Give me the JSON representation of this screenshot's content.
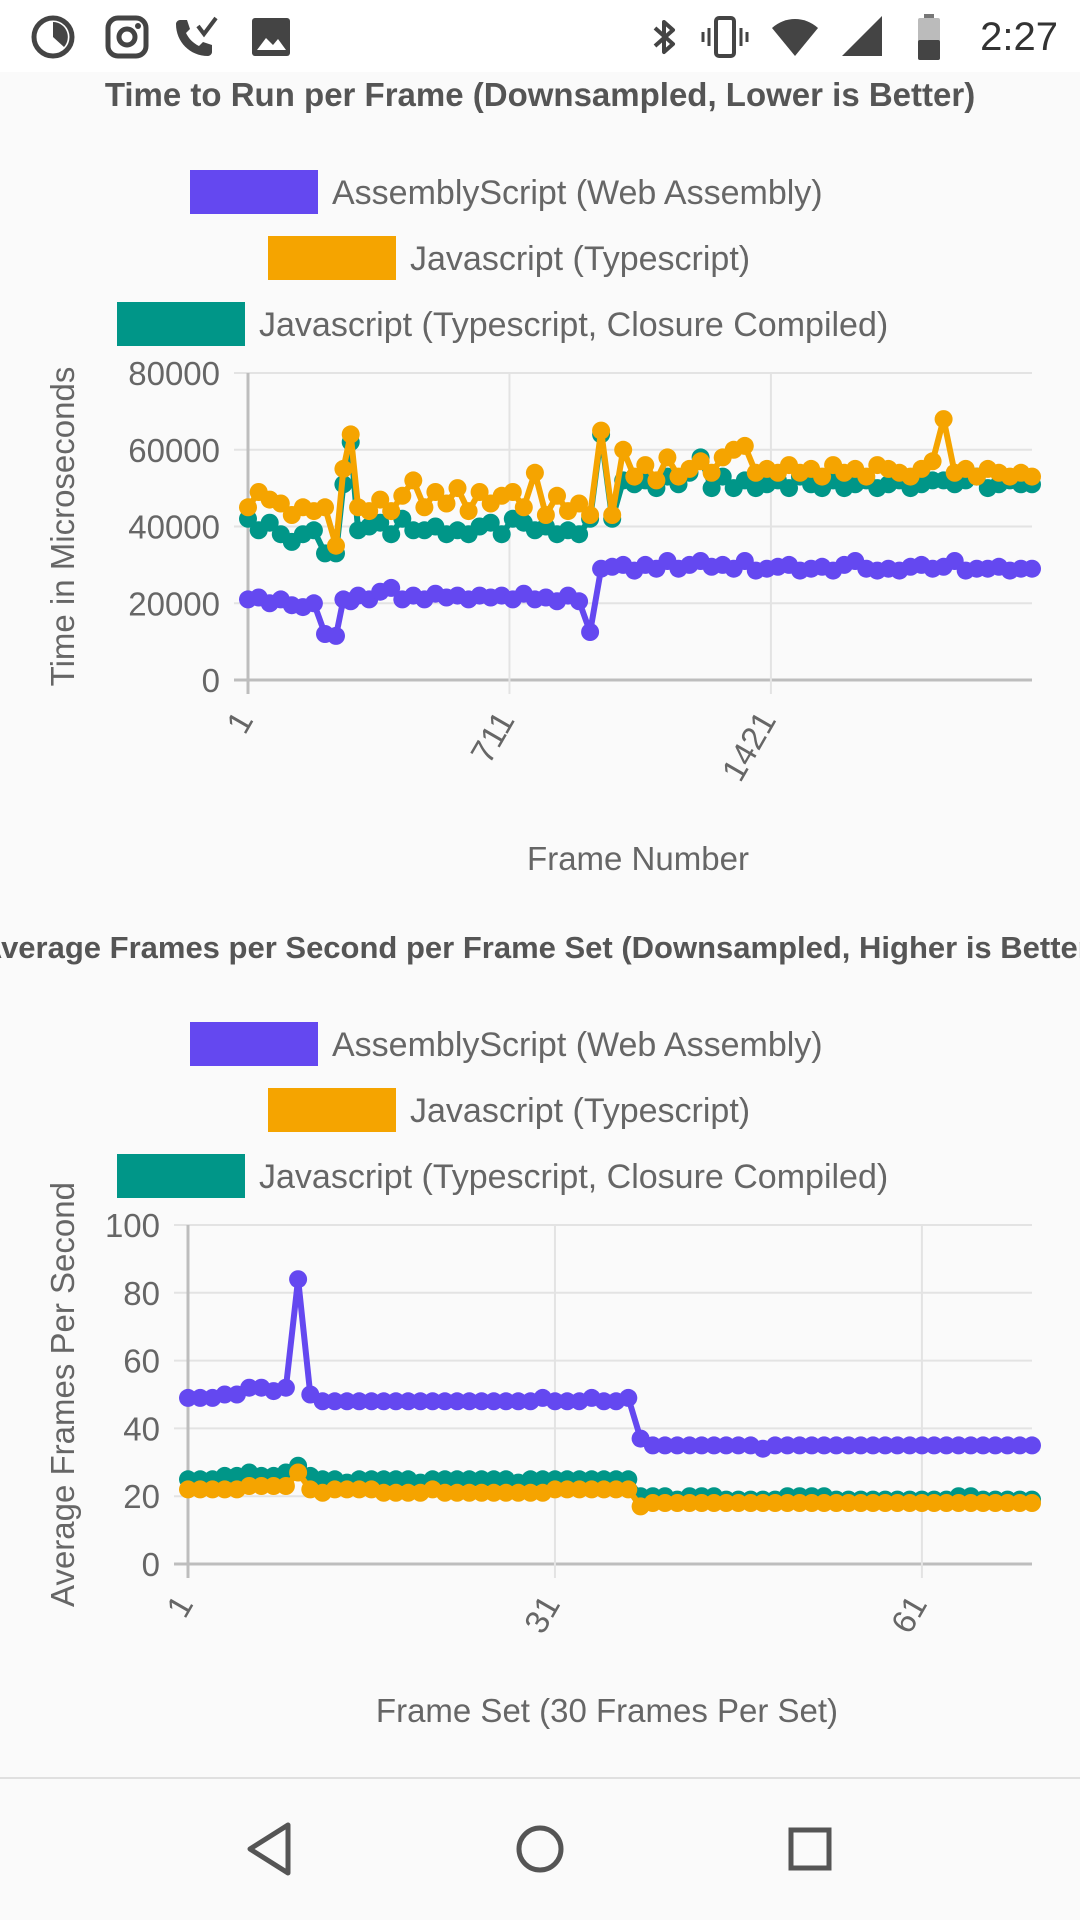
{
  "status_bar": {
    "time": "2:27",
    "left_icons": [
      "timer-icon",
      "instagram-icon",
      "wifi-calling-icon",
      "gallery-icon"
    ],
    "right_icons": [
      "bluetooth-icon",
      "vibrate-icon",
      "wifi-icon",
      "cell-signal-icon",
      "battery-icon"
    ]
  },
  "nav_bar": {
    "icons": [
      "back-icon",
      "home-icon",
      "recents-icon"
    ]
  },
  "colors": {
    "assemblyscript": "#6448f0",
    "typescript": "#f5a400",
    "closure": "#009688",
    "grid": "#e3e3e3",
    "axis": "#bdbdbd",
    "text": "#666666"
  },
  "chart_data": [
    {
      "type": "line",
      "title": "Time to Run per Frame (Downsampled, Lower is Better)",
      "xlabel": "Frame Number",
      "ylabel": "Time in Microseconds",
      "ylim": [
        0,
        80000
      ],
      "yticks": [
        "0",
        "20000",
        "40000",
        "60000",
        "80000"
      ],
      "xticks": [
        {
          "label": "1",
          "value": 1
        },
        {
          "label": "711",
          "value": 711
        },
        {
          "label": "1421",
          "value": 1421
        }
      ],
      "xlim": [
        1,
        2130
      ],
      "grid": true,
      "legend_position": "top",
      "x": [
        1,
        30,
        60,
        90,
        120,
        150,
        180,
        210,
        240,
        260,
        280,
        300,
        330,
        360,
        390,
        420,
        450,
        480,
        510,
        540,
        570,
        600,
        630,
        660,
        690,
        720,
        750,
        780,
        810,
        840,
        870,
        900,
        930,
        960,
        990,
        1020,
        1050,
        1080,
        1110,
        1140,
        1170,
        1200,
        1230,
        1260,
        1290,
        1320,
        1350,
        1380,
        1410,
        1440,
        1470,
        1500,
        1530,
        1560,
        1590,
        1620,
        1650,
        1680,
        1710,
        1740,
        1770,
        1800,
        1830,
        1860,
        1890,
        1920,
        1950,
        1980,
        2010,
        2040,
        2070,
        2100,
        2130
      ],
      "series": [
        {
          "name": "AssemblyScript (Web Assembly)",
          "color": "#6448f0",
          "values": [
            21000,
            21500,
            20000,
            21000,
            19500,
            19000,
            20000,
            12000,
            11500,
            21000,
            20500,
            22000,
            21000,
            23000,
            24000,
            21000,
            22000,
            21000,
            22500,
            21500,
            22000,
            21000,
            22000,
            21500,
            22000,
            21000,
            22500,
            21000,
            21500,
            20500,
            22000,
            20500,
            12500,
            29000,
            29500,
            30000,
            28500,
            30000,
            29000,
            31000,
            29000,
            30000,
            31000,
            29500,
            30000,
            29000,
            31000,
            28500,
            29000,
            29500,
            30000,
            28500,
            29000,
            29500,
            28500,
            30000,
            31000,
            29000,
            28500,
            29000,
            28500,
            29500,
            30000,
            29000,
            29500,
            31000,
            28500,
            29000,
            29000,
            29500,
            28500,
            29000,
            29000
          ]
        },
        {
          "name": "Javascript (Typescript)",
          "color": "#f5a400",
          "values": [
            45000,
            49000,
            47000,
            46000,
            43000,
            45000,
            44000,
            45000,
            35000,
            55000,
            64000,
            45000,
            44000,
            47000,
            44000,
            48000,
            52000,
            45000,
            49000,
            46000,
            50000,
            44000,
            49000,
            46000,
            48000,
            49000,
            45000,
            54000,
            43000,
            48000,
            44000,
            46000,
            43000,
            65000,
            43000,
            60000,
            53000,
            56000,
            52000,
            58000,
            53000,
            55000,
            57000,
            54000,
            58000,
            60000,
            61000,
            54000,
            55000,
            54000,
            56000,
            54000,
            55000,
            53000,
            56000,
            54000,
            55000,
            53000,
            56000,
            55000,
            54000,
            53000,
            55000,
            57000,
            68000,
            54000,
            55000,
            53000,
            55000,
            54000,
            53000,
            54000,
            53000
          ]
        },
        {
          "name": "Javascript (Typescript, Closure Compiled)",
          "color": "#009688",
          "values": [
            42000,
            39000,
            41000,
            38000,
            36000,
            38000,
            39000,
            33000,
            33000,
            51000,
            62000,
            39000,
            40000,
            41000,
            38000,
            42000,
            39000,
            39000,
            40000,
            38000,
            39000,
            38000,
            40000,
            41000,
            38000,
            42000,
            41000,
            39000,
            40000,
            38000,
            39000,
            38000,
            42000,
            64000,
            42000,
            52000,
            51000,
            52000,
            50000,
            53000,
            51000,
            54000,
            58000,
            50000,
            53000,
            50000,
            52000,
            50000,
            51000,
            52000,
            50000,
            53000,
            51000,
            50000,
            52000,
            50000,
            51000,
            52000,
            50000,
            51000,
            52000,
            50000,
            51000,
            52000,
            52000,
            51000,
            52000,
            53000,
            50000,
            51000,
            52000,
            51000,
            51000
          ]
        }
      ]
    },
    {
      "type": "line",
      "title": "Average Frames per Second per Frame Set (Downsampled, Higher is Better)",
      "xlabel": "Frame Set (30 Frames Per Set)",
      "ylabel": "Average Frames Per Second",
      "ylim": [
        0,
        100
      ],
      "yticks": [
        "0",
        "20",
        "40",
        "60",
        "80",
        "100"
      ],
      "xticks": [
        {
          "label": "1",
          "value": 1
        },
        {
          "label": "31",
          "value": 31
        },
        {
          "label": "61",
          "value": 61
        }
      ],
      "xlim": [
        1,
        70
      ],
      "grid": true,
      "legend_position": "top",
      "x": [
        1,
        2,
        3,
        4,
        5,
        6,
        7,
        8,
        9,
        10,
        11,
        12,
        13,
        14,
        15,
        16,
        17,
        18,
        19,
        20,
        21,
        22,
        23,
        24,
        25,
        26,
        27,
        28,
        29,
        30,
        31,
        32,
        33,
        34,
        35,
        36,
        37,
        38,
        39,
        40,
        41,
        42,
        43,
        44,
        45,
        46,
        47,
        48,
        49,
        50,
        51,
        52,
        53,
        54,
        55,
        56,
        57,
        58,
        59,
        60,
        61,
        62,
        63,
        64,
        65,
        66,
        67,
        68,
        69,
        70
      ],
      "series": [
        {
          "name": "AssemblyScript (Web Assembly)",
          "color": "#6448f0",
          "values": [
            49,
            49,
            49,
            50,
            50,
            52,
            52,
            51,
            52,
            84,
            50,
            48,
            48,
            48,
            48,
            48,
            48,
            48,
            48,
            48,
            48,
            48,
            48,
            48,
            48,
            48,
            48,
            48,
            48,
            49,
            48,
            48,
            48,
            49,
            48,
            48,
            49,
            37,
            35,
            35,
            35,
            35,
            35,
            35,
            35,
            35,
            35,
            34,
            35,
            35,
            35,
            35,
            35,
            35,
            35,
            35,
            35,
            35,
            35,
            35,
            35,
            35,
            35,
            35,
            35,
            35,
            35,
            35,
            35,
            35
          ]
        },
        {
          "name": "Javascript (Typescript)",
          "color": "#f5a400",
          "values": [
            22,
            22,
            22,
            22,
            22,
            23,
            23,
            23,
            23,
            27,
            22,
            21,
            22,
            22,
            22,
            22,
            21,
            21,
            21,
            21,
            22,
            21,
            21,
            21,
            21,
            21,
            21,
            21,
            21,
            21,
            22,
            22,
            22,
            22,
            22,
            22,
            22,
            17,
            18,
            18,
            18,
            18,
            18,
            18,
            18,
            18,
            18,
            18,
            18,
            18,
            18,
            18,
            18,
            18,
            18,
            18,
            18,
            18,
            18,
            18,
            18,
            18,
            18,
            18,
            18,
            18,
            18,
            18,
            18,
            18
          ]
        },
        {
          "name": "Javascript (Typescript, Closure Compiled)",
          "color": "#009688",
          "values": [
            25,
            25,
            25,
            26,
            26,
            27,
            26,
            26,
            27,
            29,
            26,
            25,
            25,
            24,
            25,
            25,
            25,
            25,
            25,
            24,
            25,
            25,
            25,
            25,
            25,
            25,
            25,
            24,
            25,
            25,
            25,
            25,
            25,
            25,
            25,
            25,
            25,
            20,
            20,
            20,
            19,
            20,
            20,
            20,
            19,
            19,
            19,
            19,
            19,
            20,
            20,
            20,
            20,
            19,
            19,
            19,
            19,
            19,
            19,
            19,
            19,
            19,
            19,
            20,
            20,
            19,
            19,
            19,
            19,
            19
          ]
        }
      ]
    }
  ]
}
